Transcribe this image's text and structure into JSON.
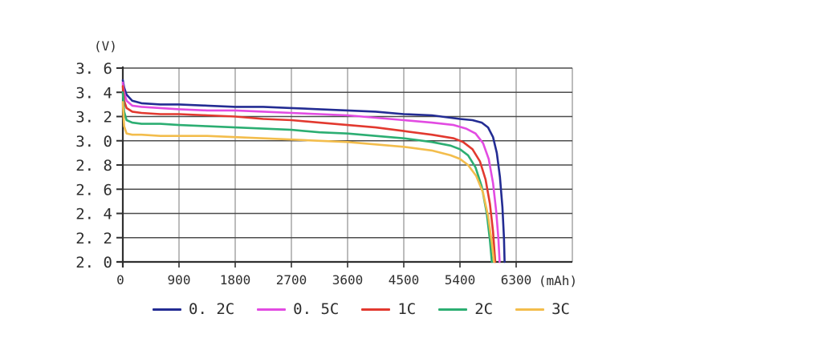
{
  "page": {
    "background": "#ffffff"
  },
  "chart_data": {
    "type": "line",
    "title": "",
    "description": "Battery discharge curves: voltage vs discharged capacity at different C-rates",
    "xlabel": "(mAh)",
    "ylabel": "(V)",
    "xlim": [
      0,
      7200
    ],
    "ylim": [
      2.0,
      3.6
    ],
    "grid": true,
    "legend_position": "bottom",
    "x_ticks": [
      0,
      900,
      1800,
      2700,
      3600,
      4500,
      5400,
      6300
    ],
    "x_tick_labels": [
      "0",
      "900",
      "1800",
      "2700",
      "3600",
      "4500",
      "5400",
      "6300"
    ],
    "x_grid_step": 900,
    "y_ticks": [
      3.6,
      3.4,
      3.2,
      3.0,
      2.8,
      2.6,
      2.4,
      2.2,
      2.0
    ],
    "y_tick_labels": [
      "3. 6",
      "3. 4",
      "3. 2",
      "3. 0",
      "2. 8",
      "2. 6",
      "2. 4",
      "2. 2",
      "2. 0"
    ],
    "series": [
      {
        "name": "0.2C",
        "label": "0. 2C",
        "color": "#232c93",
        "points": [
          [
            0,
            3.5
          ],
          [
            20,
            3.44
          ],
          [
            60,
            3.38
          ],
          [
            150,
            3.33
          ],
          [
            300,
            3.31
          ],
          [
            600,
            3.3
          ],
          [
            900,
            3.3
          ],
          [
            1350,
            3.29
          ],
          [
            1800,
            3.28
          ],
          [
            2250,
            3.28
          ],
          [
            2700,
            3.27
          ],
          [
            3150,
            3.26
          ],
          [
            3600,
            3.25
          ],
          [
            4050,
            3.24
          ],
          [
            4500,
            3.22
          ],
          [
            4950,
            3.21
          ],
          [
            5400,
            3.18
          ],
          [
            5600,
            3.17
          ],
          [
            5750,
            3.15
          ],
          [
            5850,
            3.11
          ],
          [
            5930,
            3.03
          ],
          [
            5990,
            2.9
          ],
          [
            6040,
            2.7
          ],
          [
            6080,
            2.45
          ],
          [
            6105,
            2.2
          ],
          [
            6115,
            2.0
          ]
        ]
      },
      {
        "name": "0.5C",
        "label": "0. 5C",
        "color": "#e24be2",
        "points": [
          [
            0,
            3.48
          ],
          [
            20,
            3.4
          ],
          [
            60,
            3.33
          ],
          [
            150,
            3.29
          ],
          [
            300,
            3.28
          ],
          [
            600,
            3.27
          ],
          [
            900,
            3.26
          ],
          [
            1350,
            3.25
          ],
          [
            1800,
            3.25
          ],
          [
            2250,
            3.24
          ],
          [
            2700,
            3.23
          ],
          [
            3150,
            3.22
          ],
          [
            3600,
            3.21
          ],
          [
            4050,
            3.19
          ],
          [
            4500,
            3.17
          ],
          [
            4950,
            3.15
          ],
          [
            5300,
            3.13
          ],
          [
            5500,
            3.1
          ],
          [
            5650,
            3.06
          ],
          [
            5770,
            2.98
          ],
          [
            5860,
            2.85
          ],
          [
            5930,
            2.65
          ],
          [
            5980,
            2.42
          ],
          [
            6015,
            2.2
          ],
          [
            6035,
            2.0
          ]
        ]
      },
      {
        "name": "1C",
        "label": "1C",
        "color": "#e2392f",
        "points": [
          [
            0,
            3.45
          ],
          [
            20,
            3.33
          ],
          [
            60,
            3.27
          ],
          [
            150,
            3.24
          ],
          [
            300,
            3.23
          ],
          [
            600,
            3.22
          ],
          [
            900,
            3.22
          ],
          [
            1350,
            3.21
          ],
          [
            1800,
            3.2
          ],
          [
            2250,
            3.18
          ],
          [
            2700,
            3.17
          ],
          [
            3150,
            3.15
          ],
          [
            3600,
            3.13
          ],
          [
            4050,
            3.11
          ],
          [
            4500,
            3.08
          ],
          [
            4950,
            3.05
          ],
          [
            5300,
            3.02
          ],
          [
            5450,
            2.99
          ],
          [
            5600,
            2.93
          ],
          [
            5720,
            2.83
          ],
          [
            5810,
            2.68
          ],
          [
            5880,
            2.48
          ],
          [
            5930,
            2.25
          ],
          [
            5965,
            2.0
          ]
        ]
      },
      {
        "name": "2C",
        "label": "2C",
        "color": "#2cae72",
        "points": [
          [
            0,
            3.4
          ],
          [
            20,
            3.24
          ],
          [
            60,
            3.17
          ],
          [
            150,
            3.15
          ],
          [
            300,
            3.14
          ],
          [
            600,
            3.14
          ],
          [
            900,
            3.13
          ],
          [
            1350,
            3.12
          ],
          [
            1800,
            3.11
          ],
          [
            2250,
            3.1
          ],
          [
            2700,
            3.09
          ],
          [
            3150,
            3.07
          ],
          [
            3600,
            3.06
          ],
          [
            4050,
            3.04
          ],
          [
            4500,
            3.02
          ],
          [
            4950,
            2.99
          ],
          [
            5250,
            2.96
          ],
          [
            5400,
            2.93
          ],
          [
            5530,
            2.88
          ],
          [
            5650,
            2.78
          ],
          [
            5750,
            2.62
          ],
          [
            5830,
            2.4
          ],
          [
            5880,
            2.18
          ],
          [
            5910,
            2.0
          ]
        ]
      },
      {
        "name": "3C",
        "label": "3C",
        "color": "#f3bd4c",
        "points": [
          [
            0,
            3.32
          ],
          [
            20,
            3.12
          ],
          [
            60,
            3.06
          ],
          [
            150,
            3.05
          ],
          [
            300,
            3.05
          ],
          [
            600,
            3.04
          ],
          [
            900,
            3.04
          ],
          [
            1350,
            3.04
          ],
          [
            1800,
            3.03
          ],
          [
            2250,
            3.02
          ],
          [
            2700,
            3.01
          ],
          [
            3150,
            3.0
          ],
          [
            3600,
            2.99
          ],
          [
            4050,
            2.97
          ],
          [
            4500,
            2.95
          ],
          [
            4950,
            2.92
          ],
          [
            5250,
            2.88
          ],
          [
            5400,
            2.85
          ],
          [
            5530,
            2.8
          ],
          [
            5660,
            2.71
          ],
          [
            5770,
            2.57
          ],
          [
            5850,
            2.38
          ],
          [
            5910,
            2.16
          ],
          [
            5945,
            2.0
          ]
        ]
      }
    ]
  },
  "style": {
    "grid_h_color": "#4c4c4c",
    "grid_v_color": "#8f8f8f",
    "axis_color": "#303030",
    "tick_text_color": "#2e2e2e"
  }
}
